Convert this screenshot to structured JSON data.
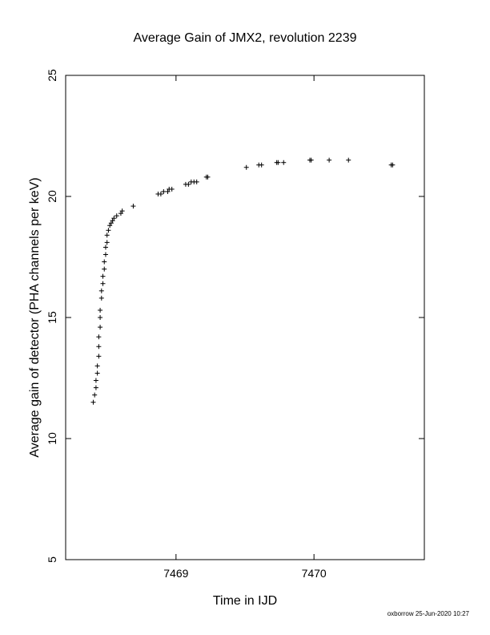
{
  "chart_data": {
    "type": "scatter",
    "title": "Average Gain of JMX2, revolution 2239",
    "xlabel": "Time in IJD",
    "ylabel": "Average gain of detector (PHA channels per keV)",
    "xlim": [
      7468.2,
      7470.8
    ],
    "ylim": [
      5,
      25
    ],
    "xticks": [
      7469,
      7470
    ],
    "yticks": [
      5,
      10,
      15,
      20,
      25
    ],
    "grid": false,
    "marker": "plus",
    "series": [
      {
        "points": [
          [
            7468.4,
            11.5
          ],
          [
            7468.41,
            11.8
          ],
          [
            7468.42,
            12.1
          ],
          [
            7468.42,
            12.4
          ],
          [
            7468.43,
            12.7
          ],
          [
            7468.43,
            13.0
          ],
          [
            7468.44,
            13.4
          ],
          [
            7468.44,
            13.8
          ],
          [
            7468.44,
            14.2
          ],
          [
            7468.45,
            14.6
          ],
          [
            7468.45,
            15.0
          ],
          [
            7468.45,
            15.3
          ],
          [
            7468.46,
            15.8
          ],
          [
            7468.46,
            16.1
          ],
          [
            7468.47,
            16.4
          ],
          [
            7468.47,
            16.7
          ],
          [
            7468.48,
            17.0
          ],
          [
            7468.48,
            17.3
          ],
          [
            7468.49,
            17.6
          ],
          [
            7468.49,
            17.9
          ],
          [
            7468.5,
            18.1
          ],
          [
            7468.5,
            18.4
          ],
          [
            7468.51,
            18.6
          ],
          [
            7468.52,
            18.8
          ],
          [
            7468.53,
            18.9
          ],
          [
            7468.54,
            19.0
          ],
          [
            7468.55,
            19.1
          ],
          [
            7468.57,
            19.2
          ],
          [
            7468.6,
            19.3
          ],
          [
            7468.61,
            19.4
          ],
          [
            7468.69,
            19.6
          ],
          [
            7468.87,
            20.1
          ],
          [
            7468.89,
            20.1
          ],
          [
            7468.91,
            20.2
          ],
          [
            7468.94,
            20.2
          ],
          [
            7468.95,
            20.3
          ],
          [
            7468.97,
            20.3
          ],
          [
            7469.07,
            20.5
          ],
          [
            7469.09,
            20.5
          ],
          [
            7469.11,
            20.6
          ],
          [
            7469.13,
            20.6
          ],
          [
            7469.15,
            20.6
          ],
          [
            7469.22,
            20.8
          ],
          [
            7469.23,
            20.8
          ],
          [
            7469.51,
            21.2
          ],
          [
            7469.6,
            21.3
          ],
          [
            7469.62,
            21.3
          ],
          [
            7469.73,
            21.4
          ],
          [
            7469.74,
            21.4
          ],
          [
            7469.78,
            21.4
          ],
          [
            7469.97,
            21.5
          ],
          [
            7469.98,
            21.5
          ],
          [
            7470.11,
            21.5
          ],
          [
            7470.25,
            21.5
          ],
          [
            7470.56,
            21.3
          ],
          [
            7470.57,
            21.3
          ]
        ]
      }
    ]
  },
  "footer": "oxborrow 25-Jun-2020 10:27",
  "colors": {
    "axes": "#000000",
    "marker": "#000000",
    "background": "#ffffff"
  }
}
